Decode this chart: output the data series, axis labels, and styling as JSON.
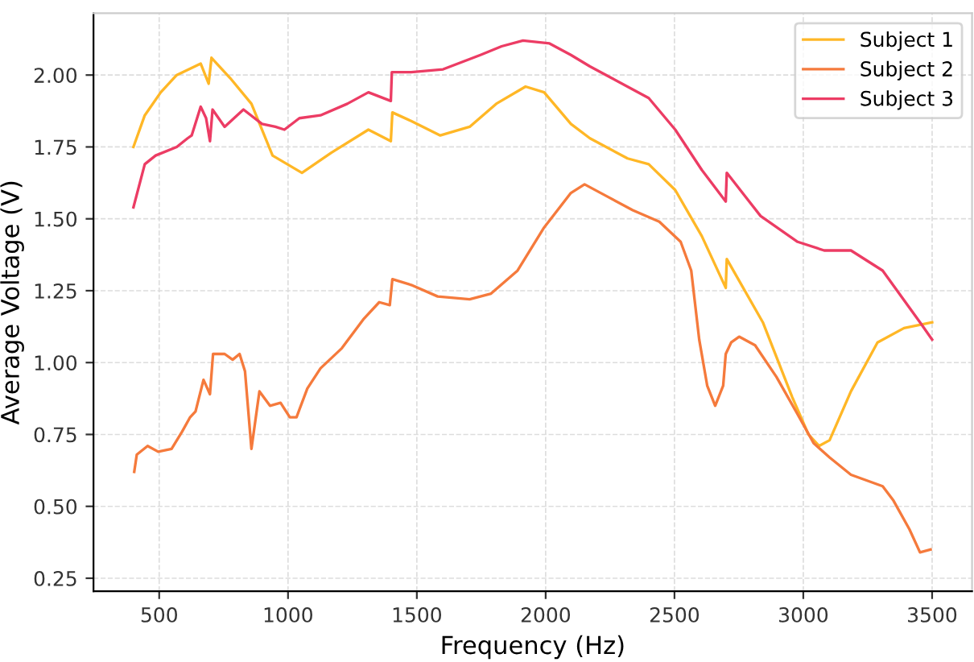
{
  "chart_data": {
    "type": "line",
    "xlabel": "Frequency (Hz)",
    "ylabel": "Average Voltage (V)",
    "xlim": [
      245,
      3655
    ],
    "ylim": [
      0.205,
      2.215
    ],
    "xticks": [
      500,
      1000,
      1500,
      2000,
      2500,
      3000,
      3500
    ],
    "yticks": [
      {
        "value": 0.25,
        "label": "0.25"
      },
      {
        "value": 0.5,
        "label": "0.50"
      },
      {
        "value": 0.75,
        "label": "0.75"
      },
      {
        "value": 1.0,
        "label": "1.00"
      },
      {
        "value": 1.25,
        "label": "1.25"
      },
      {
        "value": 1.5,
        "label": "1.50"
      },
      {
        "value": 1.75,
        "label": "1.75"
      },
      {
        "value": 2.0,
        "label": "2.00"
      }
    ],
    "grid": true,
    "legend": "top right",
    "line_style": "solid",
    "marker": "none",
    "series": [
      {
        "name": "Subject 1",
        "color": "#ffb726",
        "x": [
          400,
          444,
          506,
          568,
          661,
          692,
          703,
          775,
          858,
          940,
          1054,
          1168,
          1312,
          1399,
          1405,
          1478,
          1591,
          1705,
          1808,
          1922,
          1994,
          2098,
          2172,
          2318,
          2400,
          2503,
          2606,
          2699,
          2703,
          2843,
          2957,
          3020,
          3061,
          3102,
          3185,
          3288,
          3391,
          3500
        ],
        "values": [
          1.75,
          1.86,
          1.94,
          2.0,
          2.04,
          1.97,
          2.06,
          1.99,
          1.9,
          1.72,
          1.66,
          1.73,
          1.81,
          1.77,
          1.87,
          1.84,
          1.79,
          1.82,
          1.9,
          1.96,
          1.94,
          1.83,
          1.78,
          1.71,
          1.69,
          1.6,
          1.44,
          1.26,
          1.36,
          1.14,
          0.88,
          0.75,
          0.71,
          0.73,
          0.9,
          1.07,
          1.12,
          1.14
        ]
      },
      {
        "name": "Subject 2",
        "color": "#f57a3c",
        "x": [
          403,
          413,
          455,
          496,
          548,
          589,
          620,
          641,
          672,
          697,
          709,
          754,
          785,
          812,
          833,
          858,
          889,
          930,
          971,
          1007,
          1033,
          1075,
          1126,
          1209,
          1292,
          1354,
          1395,
          1405,
          1478,
          1581,
          1705,
          1788,
          1891,
          1994,
          2098,
          2151,
          2234,
          2338,
          2441,
          2524,
          2565,
          2596,
          2627,
          2658,
          2689,
          2699,
          2720,
          2751,
          2813,
          2896,
          2978,
          3040,
          3102,
          3185,
          3308,
          3350,
          3412,
          3453,
          3494
        ],
        "values": [
          0.62,
          0.68,
          0.71,
          0.69,
          0.7,
          0.76,
          0.81,
          0.83,
          0.94,
          0.89,
          1.03,
          1.03,
          1.01,
          1.03,
          0.97,
          0.7,
          0.9,
          0.85,
          0.86,
          0.81,
          0.81,
          0.91,
          0.98,
          1.05,
          1.15,
          1.21,
          1.2,
          1.29,
          1.27,
          1.23,
          1.22,
          1.24,
          1.32,
          1.47,
          1.59,
          1.62,
          1.58,
          1.53,
          1.49,
          1.42,
          1.32,
          1.08,
          0.92,
          0.85,
          0.92,
          1.03,
          1.07,
          1.09,
          1.06,
          0.95,
          0.82,
          0.72,
          0.67,
          0.61,
          0.57,
          0.52,
          0.42,
          0.34,
          0.35
        ]
      },
      {
        "name": "Subject 3",
        "color": "#ec3c64",
        "x": [
          400,
          444,
          486,
          568,
          610,
          626,
          661,
          682,
          697,
          707,
          754,
          827,
          899,
          951,
          986,
          1044,
          1126,
          1230,
          1312,
          1399,
          1403,
          1478,
          1602,
          1747,
          1829,
          1912,
          2015,
          2098,
          2172,
          2255,
          2400,
          2503,
          2606,
          2699,
          2703,
          2834,
          2978,
          3081,
          3185,
          3308,
          3453,
          3500
        ],
        "values": [
          1.54,
          1.69,
          1.72,
          1.75,
          1.78,
          1.79,
          1.89,
          1.85,
          1.77,
          1.88,
          1.82,
          1.88,
          1.83,
          1.82,
          1.81,
          1.85,
          1.86,
          1.9,
          1.94,
          1.91,
          2.01,
          2.01,
          2.02,
          2.07,
          2.1,
          2.12,
          2.11,
          2.07,
          2.03,
          1.99,
          1.92,
          1.81,
          1.67,
          1.56,
          1.66,
          1.51,
          1.42,
          1.39,
          1.39,
          1.32,
          1.14,
          1.08
        ]
      }
    ]
  }
}
